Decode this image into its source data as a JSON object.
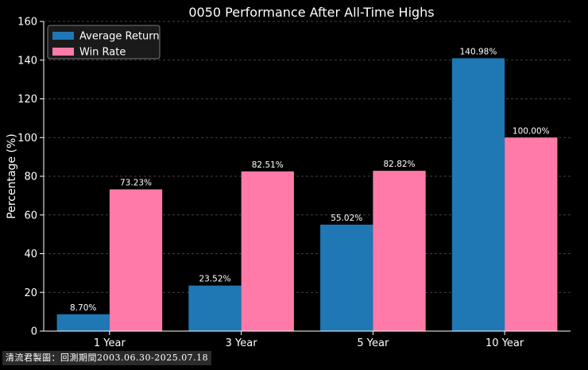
{
  "chart_data": {
    "type": "bar",
    "title": "0050 Performance After All-Time Highs",
    "xlabel": "",
    "ylabel": "Percentage (%)",
    "categories": [
      "1 Year",
      "3 Year",
      "5 Year",
      "10 Year"
    ],
    "series": [
      {
        "name": "Average Return",
        "color": "#1f77b4",
        "values": [
          8.7,
          23.52,
          55.02,
          140.98
        ],
        "labels": [
          "8.70%",
          "23.52%",
          "55.02%",
          "140.98%"
        ]
      },
      {
        "name": "Win Rate",
        "color": "#ff7aa8",
        "values": [
          73.23,
          82.51,
          82.82,
          100.0
        ],
        "labels": [
          "73.23%",
          "82.51%",
          "82.82%",
          "100.00%"
        ]
      }
    ],
    "ylim": [
      0,
      160
    ],
    "yticks": [
      0,
      20,
      40,
      60,
      80,
      100,
      120,
      140,
      160
    ],
    "grid": true,
    "legend_position": "top-left"
  },
  "footer": {
    "text": "清流君製圖：回測期間2003.06.30-2025.07.18"
  },
  "colors": {
    "background": "#000000",
    "text": "#ffffff",
    "grid": "#555555"
  }
}
